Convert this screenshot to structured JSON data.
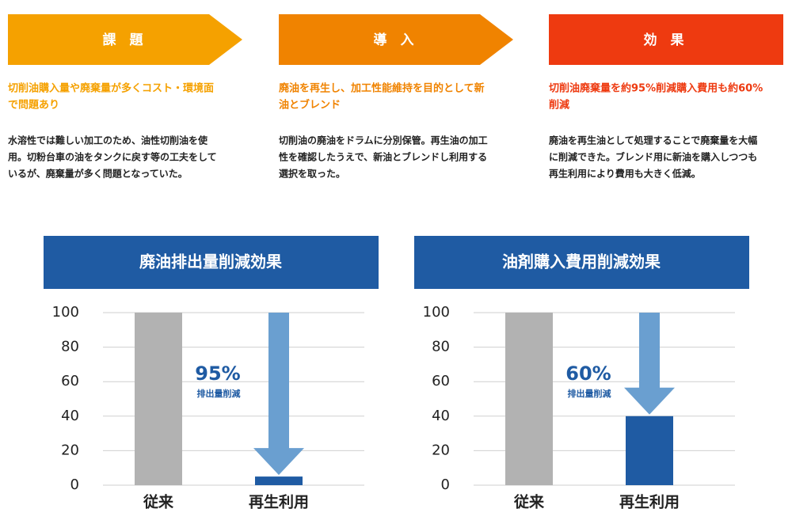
{
  "steps": [
    {
      "title": "課　題",
      "color": "#f5a100",
      "heading_lines": [
        "切削油購入量や廃棄量が多くコスト・環境面",
        "で問題あり"
      ],
      "body_lines": [
        "水溶性では難しい加工のため、油性切削油を使",
        "用。切粉台車の油をタンクに戻す等の工夫をして",
        "いるが、廃棄量が多く問題となっていた。"
      ]
    },
    {
      "title": "導　入",
      "color": "#f08300",
      "heading_lines": [
        "廃油を再生し、加工性能維持を目的として新",
        "油とブレンド"
      ],
      "body_lines": [
        "切削油の廃油をドラムに分別保管。再生油の加工",
        "性を確認したうえで、新油とブレンドし利用する",
        "選択を取った。"
      ]
    },
    {
      "title": "効　果",
      "color": "#ee3a10",
      "heading_lines": [
        "切削油廃棄量を約95%削減購入費用も約60%",
        "削減"
      ],
      "body_lines": [
        "廃油を再生油として処理することで廃棄量を大幅",
        "に削減できた。ブレンド用に新油を購入しつつも",
        "再生利用により費用も大きく低減。"
      ]
    }
  ],
  "chart_data": [
    {
      "type": "bar",
      "title": "廃油排出量削減効果",
      "categories": [
        "従来",
        "再生利用"
      ],
      "values": [
        100,
        5
      ],
      "colors": [
        "#b2b2b2",
        "#1f5ba3"
      ],
      "ylim": [
        0,
        100
      ],
      "yticks": [
        0,
        20,
        40,
        60,
        80,
        100
      ],
      "grid": true,
      "annotation": "95%",
      "annotation_sub": "排出量削減"
    },
    {
      "type": "bar",
      "title": "油剤購入費用削減効果",
      "categories": [
        "従来",
        "再生利用"
      ],
      "values": [
        100,
        40
      ],
      "colors": [
        "#b2b2b2",
        "#1f5ba3"
      ],
      "ylim": [
        0,
        100
      ],
      "yticks": [
        0,
        20,
        40,
        60,
        80,
        100
      ],
      "grid": true,
      "annotation": "60%",
      "annotation_sub": "排出量削減"
    }
  ]
}
